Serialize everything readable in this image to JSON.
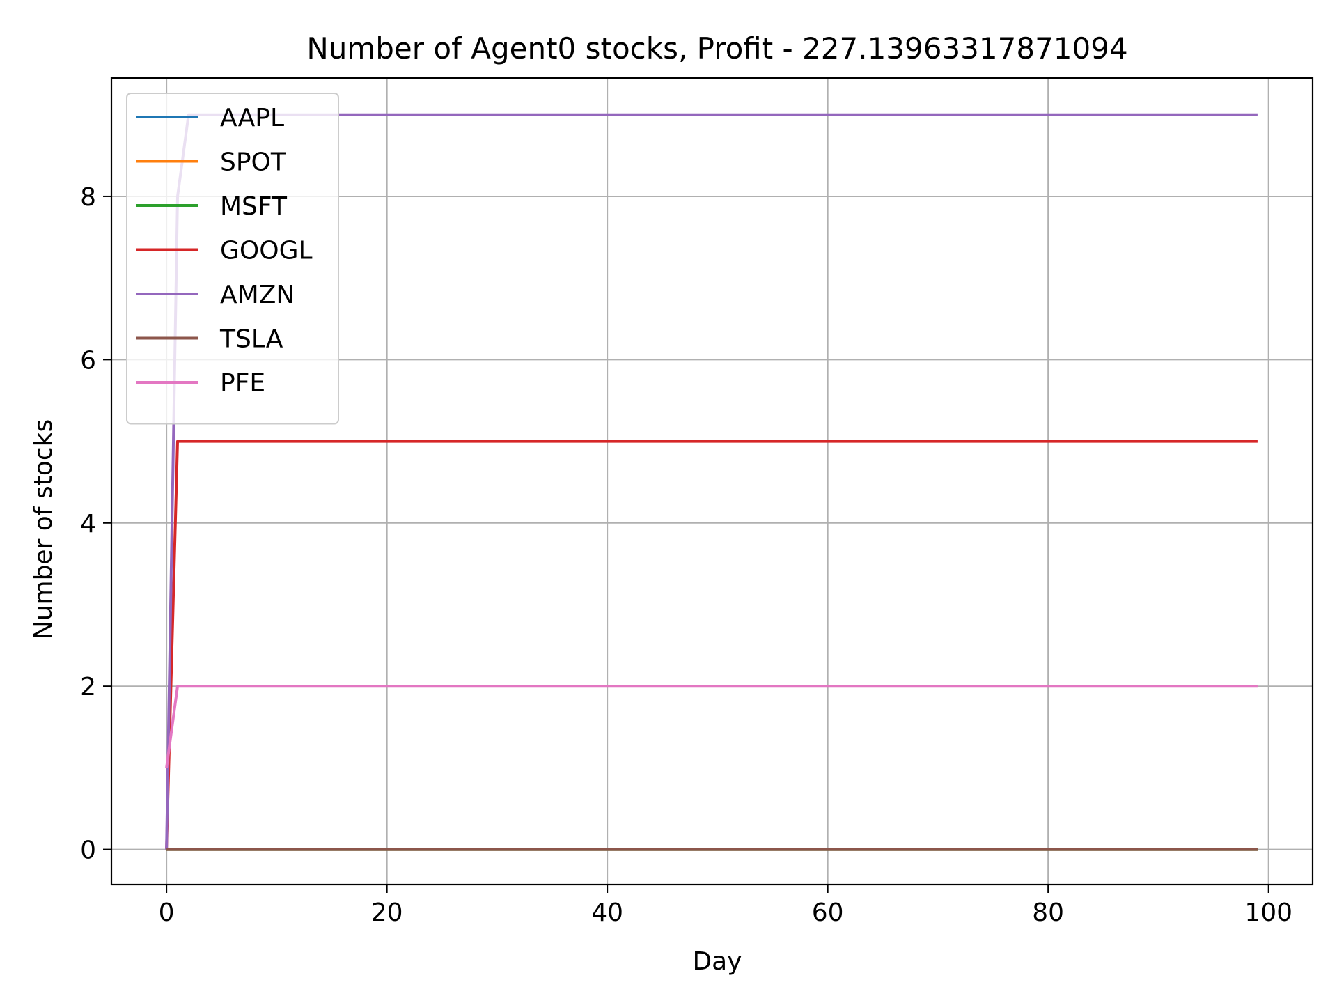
{
  "chart_data": {
    "type": "line",
    "title": "Number of Agent0 stocks, Profit - 227.13963317871094",
    "xlabel": "Day",
    "ylabel": "Number of stocks",
    "xlim": [
      -5,
      104
    ],
    "ylim": [
      -0.43,
      9.45
    ],
    "xticks": [
      0,
      20,
      40,
      60,
      80,
      100
    ],
    "yticks": [
      0,
      2,
      4,
      6,
      8
    ],
    "grid": true,
    "legend_position": "upper-left",
    "series": [
      {
        "name": "AAPL",
        "color": "#1f77b4",
        "points": [
          [
            0,
            0
          ],
          [
            99,
            0
          ]
        ]
      },
      {
        "name": "SPOT",
        "color": "#ff7f0e",
        "points": [
          [
            0,
            0
          ],
          [
            99,
            0
          ]
        ]
      },
      {
        "name": "MSFT",
        "color": "#2ca02c",
        "points": [
          [
            0,
            0
          ],
          [
            99,
            0
          ]
        ]
      },
      {
        "name": "GOOGL",
        "color": "#d62728",
        "points": [
          [
            0,
            0
          ],
          [
            1,
            5
          ],
          [
            99,
            5
          ]
        ]
      },
      {
        "name": "AMZN",
        "color": "#9467bd",
        "points": [
          [
            0,
            0
          ],
          [
            1,
            8
          ],
          [
            2,
            9
          ],
          [
            99,
            9
          ]
        ]
      },
      {
        "name": "TSLA",
        "color": "#8c564b",
        "points": [
          [
            0,
            0
          ],
          [
            99,
            0
          ]
        ]
      },
      {
        "name": "PFE",
        "color": "#e377c2",
        "points": [
          [
            0,
            1
          ],
          [
            1,
            2
          ],
          [
            99,
            2
          ]
        ]
      }
    ]
  }
}
